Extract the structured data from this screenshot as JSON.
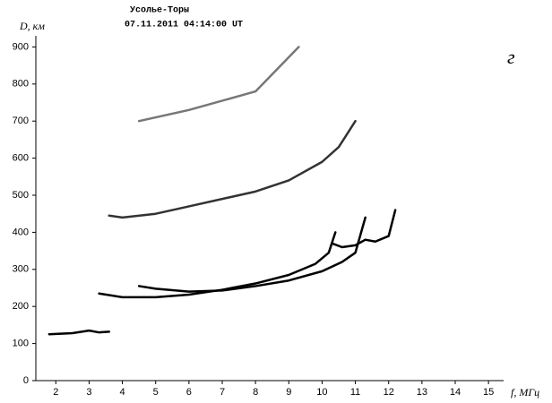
{
  "chart_data": {
    "type": "line",
    "title": "Усолье-Торы",
    "subtitle": "07.11.2011    04:14:00 UT",
    "y_label": "D, км",
    "x_label": "f, МГц",
    "annotation": "г",
    "xlim": [
      1.4,
      15.4
    ],
    "ylim": [
      0,
      930
    ],
    "xticks": [
      2,
      3,
      4,
      5,
      6,
      7,
      8,
      9,
      10,
      11,
      12,
      13,
      14,
      15
    ],
    "yticks": [
      0,
      100,
      200,
      300,
      400,
      500,
      600,
      700,
      800,
      900
    ],
    "series": [
      {
        "color": "#000000",
        "x": [
          1.8,
          2.5,
          3.0,
          3.3,
          3.6
        ],
        "values": [
          125,
          128,
          135,
          130,
          132
        ]
      },
      {
        "color": "#000000",
        "x": [
          3.3,
          4,
          5,
          6,
          7,
          8,
          9,
          9.8,
          10.2,
          10.4
        ],
        "values": [
          235,
          225,
          225,
          232,
          245,
          262,
          285,
          315,
          345,
          400
        ]
      },
      {
        "color": "#000000",
        "x": [
          4.5,
          5,
          6,
          7,
          8,
          9,
          10,
          10.6,
          11.0,
          11.3
        ],
        "values": [
          255,
          248,
          240,
          243,
          255,
          270,
          295,
          320,
          345,
          440
        ]
      },
      {
        "color": "#000000",
        "x": [
          10.3,
          10.6,
          11,
          11.3,
          11.6,
          12,
          12.2
        ],
        "values": [
          370,
          360,
          365,
          380,
          375,
          390,
          460
        ]
      },
      {
        "color": "#333333",
        "x": [
          3.6,
          4,
          5,
          6,
          7,
          8,
          9,
          10,
          10.5,
          11
        ],
        "values": [
          445,
          440,
          450,
          470,
          490,
          510,
          540,
          590,
          630,
          700
        ]
      },
      {
        "color": "#777777",
        "x": [
          4.5,
          6,
          8,
          9.3
        ],
        "values": [
          700,
          730,
          780,
          900
        ]
      }
    ]
  }
}
